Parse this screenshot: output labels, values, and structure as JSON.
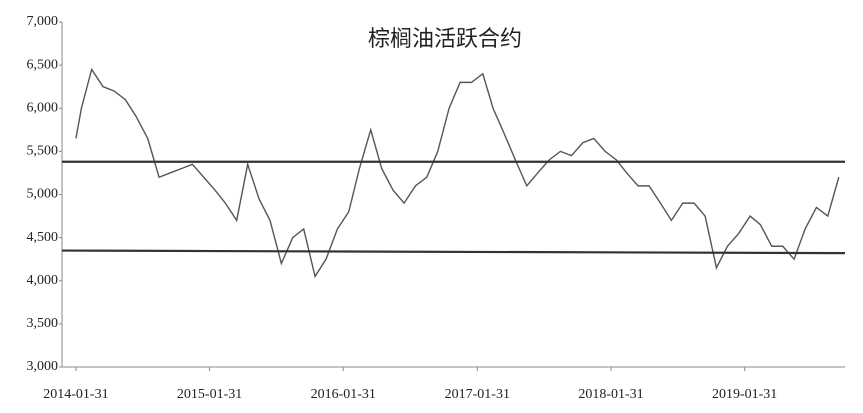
{
  "chart_data": {
    "type": "line",
    "title": "棕榈油活跃合约",
    "x": [
      "2014-01-31",
      "2014-02-15",
      "2014-03-15",
      "2014-04-15",
      "2014-05-15",
      "2014-06-15",
      "2014-07-15",
      "2014-08-15",
      "2014-09-15",
      "2014-10-15",
      "2014-11-15",
      "2014-12-15",
      "2015-01-15",
      "2015-02-15",
      "2015-03-15",
      "2015-04-15",
      "2015-05-15",
      "2015-06-15",
      "2015-07-15",
      "2015-08-15",
      "2015-09-15",
      "2015-10-15",
      "2015-11-15",
      "2015-12-15",
      "2016-01-15",
      "2016-02-15",
      "2016-03-15",
      "2016-04-15",
      "2016-05-15",
      "2016-06-15",
      "2016-07-15",
      "2016-08-15",
      "2016-09-15",
      "2016-10-15",
      "2016-11-15",
      "2016-12-15",
      "2017-01-15",
      "2017-02-15",
      "2017-03-15",
      "2017-04-15",
      "2017-05-15",
      "2017-06-15",
      "2017-07-15",
      "2017-08-15",
      "2017-09-15",
      "2017-10-15",
      "2017-11-15",
      "2017-12-15",
      "2018-01-15",
      "2018-02-15",
      "2018-03-15",
      "2018-04-15",
      "2018-05-15",
      "2018-06-15",
      "2018-07-15",
      "2018-08-15",
      "2018-09-15",
      "2018-10-15",
      "2018-11-15",
      "2018-12-15",
      "2019-01-15",
      "2019-02-15",
      "2019-03-15",
      "2019-04-15",
      "2019-05-15",
      "2019-06-15",
      "2019-07-15",
      "2019-08-15",
      "2019-09-15",
      "2019-10-15"
    ],
    "series": [
      {
        "color": "#555555",
        "values": [
          5650,
          6000,
          6450,
          6250,
          6200,
          6100,
          5900,
          5650,
          5200,
          5250,
          5300,
          5350,
          5200,
          5050,
          4900,
          4700,
          5350,
          4950,
          4700,
          4200,
          4500,
          4600,
          4050,
          4250,
          4600,
          4800,
          5300,
          5750,
          5300,
          5050,
          4900,
          5100,
          5200,
          5500,
          6000,
          6300,
          6300,
          6400,
          6000,
          5700,
          5400,
          5100,
          5250,
          5400,
          5500,
          5450,
          5600,
          5650,
          5500,
          5400,
          5250,
          5100,
          5100,
          4900,
          4700,
          4900,
          4900,
          4750,
          4150,
          4400,
          4550,
          4750,
          4650,
          4400,
          4400,
          4250,
          4600,
          4850,
          4750,
          5200
        ]
      }
    ],
    "trend_lines": [
      {
        "color": "#333333",
        "x": [
          "2013-12-24",
          "2019-11-01"
        ],
        "values": [
          5380,
          5380
        ]
      },
      {
        "color": "#333333",
        "x": [
          "2013-12-24",
          "2019-11-01"
        ],
        "values": [
          4350,
          4320
        ]
      }
    ],
    "xlim": [
      "2013-12-24",
      "2019-11-01"
    ],
    "xticks": [
      "2014-01-31",
      "2015-01-31",
      "2016-01-31",
      "2017-01-31",
      "2018-01-31",
      "2019-01-31"
    ],
    "ylim": [
      3000,
      7000
    ],
    "yticks": [
      {
        "value": 3000,
        "label": "3,000"
      },
      {
        "value": 3500,
        "label": "3,500"
      },
      {
        "value": 4000,
        "label": "4,000"
      },
      {
        "value": 4500,
        "label": "4,500"
      },
      {
        "value": 5000,
        "label": "5,000"
      },
      {
        "value": 5500,
        "label": "5,500"
      },
      {
        "value": 6000,
        "label": "6,000"
      },
      {
        "value": 6500,
        "label": "6,500"
      },
      {
        "value": 7000,
        "label": "7,000"
      }
    ],
    "grid": false
  }
}
